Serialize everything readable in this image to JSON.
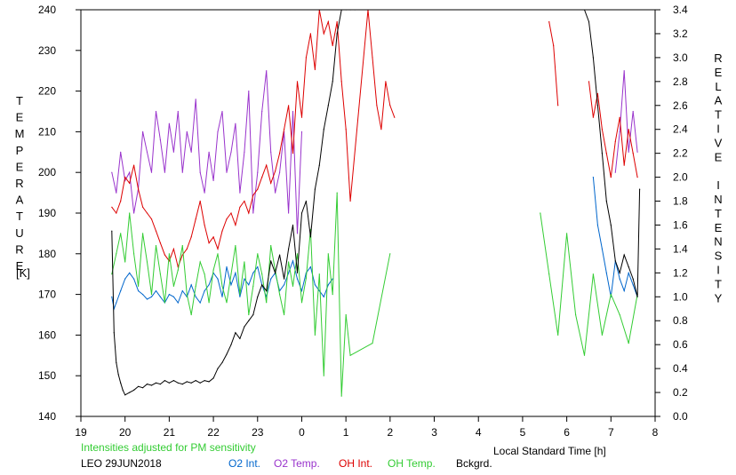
{
  "chart_data": {
    "type": "line",
    "xlabel": "Local Standard Time [h]",
    "ylabel_left": "TEMPERATURE",
    "ylabel_left_unit": "[K]",
    "ylabel_right": "RELATIVE INTENSITY",
    "note": "Intensities adjusted for PM sensitivity",
    "station": "LEO 29JUN2018",
    "x_ticks": [
      "19",
      "20",
      "21",
      "22",
      "23",
      "0",
      "1",
      "2",
      "3",
      "4",
      "5",
      "6",
      "7",
      "8"
    ],
    "xlim": [
      19,
      32
    ],
    "ylim_left": [
      140,
      240
    ],
    "ylim_right": [
      0.0,
      3.4
    ],
    "y_left_ticks": [
      140,
      150,
      160,
      170,
      180,
      190,
      200,
      210,
      220,
      230,
      240
    ],
    "y_right_ticks": [
      "0.0",
      "0.2",
      "0.4",
      "0.6",
      "0.8",
      "1.0",
      "1.2",
      "1.4",
      "1.6",
      "1.8",
      "2.0",
      "2.2",
      "2.4",
      "2.6",
      "2.8",
      "3.0",
      "3.2",
      "3.4"
    ],
    "grid": false,
    "legend_placement": "bottom",
    "series": [
      {
        "name": "O2 Int.",
        "color": "#0066cc",
        "axis": "right",
        "x": [
          19.7,
          19.75,
          19.8,
          19.9,
          20.0,
          20.1,
          20.2,
          20.3,
          20.4,
          20.5,
          20.6,
          20.7,
          20.8,
          20.9,
          21.0,
          21.1,
          21.2,
          21.3,
          21.4,
          21.5,
          21.6,
          21.7,
          21.8,
          21.9,
          22.0,
          22.1,
          22.2,
          22.3,
          22.4,
          22.5,
          22.6,
          22.7,
          22.8,
          22.9,
          23.0,
          23.1,
          23.2,
          23.3,
          23.4,
          23.5,
          23.6,
          23.7,
          23.8,
          23.9,
          24.0,
          24.1,
          24.2,
          24.3,
          24.4,
          24.5,
          24.6,
          24.7,
          30.6,
          30.7,
          30.8,
          30.9,
          31.0,
          31.1,
          31.2,
          31.3,
          31.4,
          31.5,
          31.6
        ],
        "y": [
          1.0,
          0.9,
          0.95,
          1.05,
          1.15,
          1.2,
          1.15,
          1.05,
          1.02,
          0.98,
          1.0,
          1.05,
          1.0,
          0.95,
          1.02,
          1.0,
          0.95,
          1.05,
          1.0,
          1.1,
          1.0,
          0.95,
          1.05,
          1.1,
          1.2,
          1.15,
          1.0,
          1.25,
          1.1,
          1.2,
          1.0,
          1.15,
          1.1,
          1.2,
          1.25,
          1.1,
          1.0,
          1.15,
          1.2,
          1.05,
          1.1,
          1.2,
          1.3,
          1.15,
          1.05,
          1.2,
          1.25,
          1.1,
          1.05,
          1.0,
          1.1,
          1.15,
          2.0,
          1.6,
          1.4,
          1.2,
          1.0,
          1.3,
          1.15,
          1.05,
          1.2,
          1.1,
          1.0
        ]
      },
      {
        "name": "O2 Temp.",
        "color": "#9933cc",
        "axis": "left",
        "x": [
          19.7,
          19.8,
          19.9,
          20.0,
          20.1,
          20.2,
          20.3,
          20.4,
          20.5,
          20.6,
          20.7,
          20.8,
          20.9,
          21.0,
          21.1,
          21.2,
          21.3,
          21.4,
          21.5,
          21.6,
          21.7,
          21.8,
          21.9,
          22.0,
          22.1,
          22.2,
          22.3,
          22.4,
          22.5,
          22.6,
          22.7,
          22.8,
          22.9,
          23.0,
          23.1,
          23.2,
          23.3,
          23.4,
          23.5,
          23.6,
          23.7,
          23.8,
          23.9,
          24.0,
          31.1,
          31.2,
          31.3,
          31.4,
          31.5,
          31.6
        ],
        "y": [
          200,
          195,
          205,
          198,
          200,
          190,
          196,
          210,
          205,
          200,
          215,
          208,
          200,
          212,
          205,
          215,
          200,
          210,
          205,
          218,
          200,
          195,
          205,
          198,
          210,
          215,
          200,
          205,
          212,
          195,
          205,
          220,
          190,
          200,
          215,
          225,
          205,
          195,
          200,
          210,
          190,
          215,
          185,
          210,
          200,
          210,
          225,
          205,
          215,
          205
        ]
      },
      {
        "name": "OH Int.",
        "color": "#dd0000",
        "axis": "right",
        "x": [
          19.7,
          19.8,
          19.9,
          20.0,
          20.1,
          20.2,
          20.3,
          20.4,
          20.5,
          20.6,
          20.7,
          20.8,
          20.9,
          21.0,
          21.1,
          21.2,
          21.3,
          21.4,
          21.5,
          21.6,
          21.7,
          21.8,
          21.9,
          22.0,
          22.1,
          22.2,
          22.3,
          22.4,
          22.5,
          22.6,
          22.7,
          22.8,
          22.9,
          23.0,
          23.1,
          23.2,
          23.3,
          23.4,
          23.5,
          23.6,
          23.7,
          23.8,
          23.9,
          24.0,
          24.1,
          24.2,
          24.3,
          24.4,
          24.5,
          24.6,
          24.7,
          24.8,
          24.9,
          25.0,
          25.1,
          25.5,
          25.6,
          25.7,
          25.8,
          25.9,
          26.0,
          26.1,
          29.6,
          29.7,
          29.8,
          30.5,
          30.6,
          30.7,
          30.8,
          30.9,
          31.0,
          31.1,
          31.2,
          31.3,
          31.4,
          31.5,
          31.6
        ],
        "y": [
          1.75,
          1.7,
          1.8,
          2.0,
          1.95,
          2.1,
          1.9,
          1.75,
          1.7,
          1.65,
          1.55,
          1.45,
          1.35,
          1.3,
          1.4,
          1.25,
          1.35,
          1.4,
          1.5,
          1.65,
          1.8,
          1.6,
          1.45,
          1.5,
          1.4,
          1.55,
          1.65,
          1.7,
          1.6,
          1.75,
          1.8,
          1.7,
          1.85,
          1.9,
          2.0,
          2.1,
          1.95,
          2.05,
          2.2,
          2.4,
          2.6,
          2.2,
          2.8,
          2.5,
          3.0,
          3.2,
          2.9,
          3.4,
          3.2,
          3.3,
          3.1,
          3.3,
          2.8,
          2.4,
          1.8,
          3.4,
          3.0,
          2.6,
          2.4,
          2.8,
          2.6,
          2.5,
          3.3,
          3.1,
          2.6,
          2.8,
          2.5,
          2.7,
          2.4,
          2.2,
          2.0,
          2.3,
          2.5,
          2.1,
          2.4,
          2.2,
          2.0
        ]
      },
      {
        "name": "OH Temp.",
        "color": "#33cc33",
        "axis": "left",
        "x": [
          19.7,
          19.8,
          19.9,
          20.0,
          20.1,
          20.2,
          20.3,
          20.4,
          20.5,
          20.6,
          20.7,
          20.8,
          20.9,
          21.0,
          21.1,
          21.2,
          21.3,
          21.4,
          21.5,
          21.6,
          21.7,
          21.8,
          21.9,
          22.0,
          22.1,
          22.2,
          22.3,
          22.4,
          22.5,
          22.6,
          22.7,
          22.8,
          22.9,
          23.0,
          23.1,
          23.2,
          23.3,
          23.4,
          23.5,
          23.6,
          23.7,
          23.8,
          23.9,
          24.0,
          24.1,
          24.2,
          24.3,
          24.4,
          24.5,
          24.6,
          24.7,
          24.8,
          24.9,
          25.0,
          25.1,
          25.6,
          26.0,
          29.4,
          29.6,
          29.8,
          30.0,
          30.2,
          30.4,
          30.6,
          30.8,
          31.0,
          31.2,
          31.4,
          31.6
        ],
        "y": [
          175,
          180,
          185,
          178,
          190,
          180,
          172,
          185,
          178,
          170,
          182,
          175,
          168,
          180,
          172,
          176,
          182,
          170,
          165,
          172,
          178,
          175,
          168,
          176,
          180,
          172,
          168,
          175,
          182,
          170,
          178,
          165,
          172,
          180,
          175,
          168,
          182,
          176,
          170,
          165,
          178,
          172,
          180,
          168,
          174,
          186,
          160,
          175,
          150,
          180,
          170,
          195,
          145,
          165,
          155,
          158,
          180,
          190,
          175,
          160,
          185,
          165,
          155,
          175,
          160,
          170,
          165,
          158,
          170
        ]
      },
      {
        "name": "Bckgrd.",
        "color": "#000000",
        "axis": "right",
        "x": [
          19.7,
          19.75,
          19.8,
          19.85,
          19.9,
          19.95,
          20.0,
          20.1,
          20.2,
          20.3,
          20.4,
          20.5,
          20.6,
          20.7,
          20.8,
          20.9,
          21.0,
          21.1,
          21.2,
          21.3,
          21.4,
          21.5,
          21.6,
          21.7,
          21.8,
          21.9,
          22.0,
          22.1,
          22.2,
          22.3,
          22.4,
          22.5,
          22.6,
          22.7,
          22.8,
          22.9,
          23.0,
          23.1,
          23.2,
          23.3,
          23.4,
          23.5,
          23.6,
          23.7,
          23.8,
          23.9,
          24.0,
          24.1,
          24.2,
          24.3,
          24.4,
          24.5,
          24.6,
          24.7,
          24.8,
          24.9,
          25.0,
          25.1,
          25.2,
          30.4,
          30.5,
          30.6,
          30.7,
          30.8,
          30.9,
          31.0,
          31.1,
          31.2,
          31.3,
          31.4,
          31.5,
          31.6,
          31.65
        ],
        "y": [
          1.55,
          0.7,
          0.45,
          0.35,
          0.28,
          0.22,
          0.18,
          0.2,
          0.22,
          0.25,
          0.24,
          0.27,
          0.26,
          0.28,
          0.27,
          0.3,
          0.28,
          0.3,
          0.28,
          0.27,
          0.29,
          0.28,
          0.3,
          0.28,
          0.3,
          0.29,
          0.32,
          0.4,
          0.45,
          0.52,
          0.6,
          0.7,
          0.65,
          0.75,
          0.8,
          0.85,
          1.0,
          1.1,
          1.05,
          1.3,
          1.2,
          1.35,
          1.15,
          1.4,
          1.6,
          1.2,
          1.7,
          1.8,
          1.5,
          1.9,
          2.1,
          2.4,
          2.6,
          2.8,
          3.2,
          3.4,
          3.4,
          3.4,
          3.4,
          3.4,
          3.3,
          3.0,
          2.6,
          2.2,
          1.8,
          1.6,
          1.3,
          1.2,
          1.35,
          1.25,
          1.15,
          1.0,
          1.9
        ]
      }
    ]
  }
}
